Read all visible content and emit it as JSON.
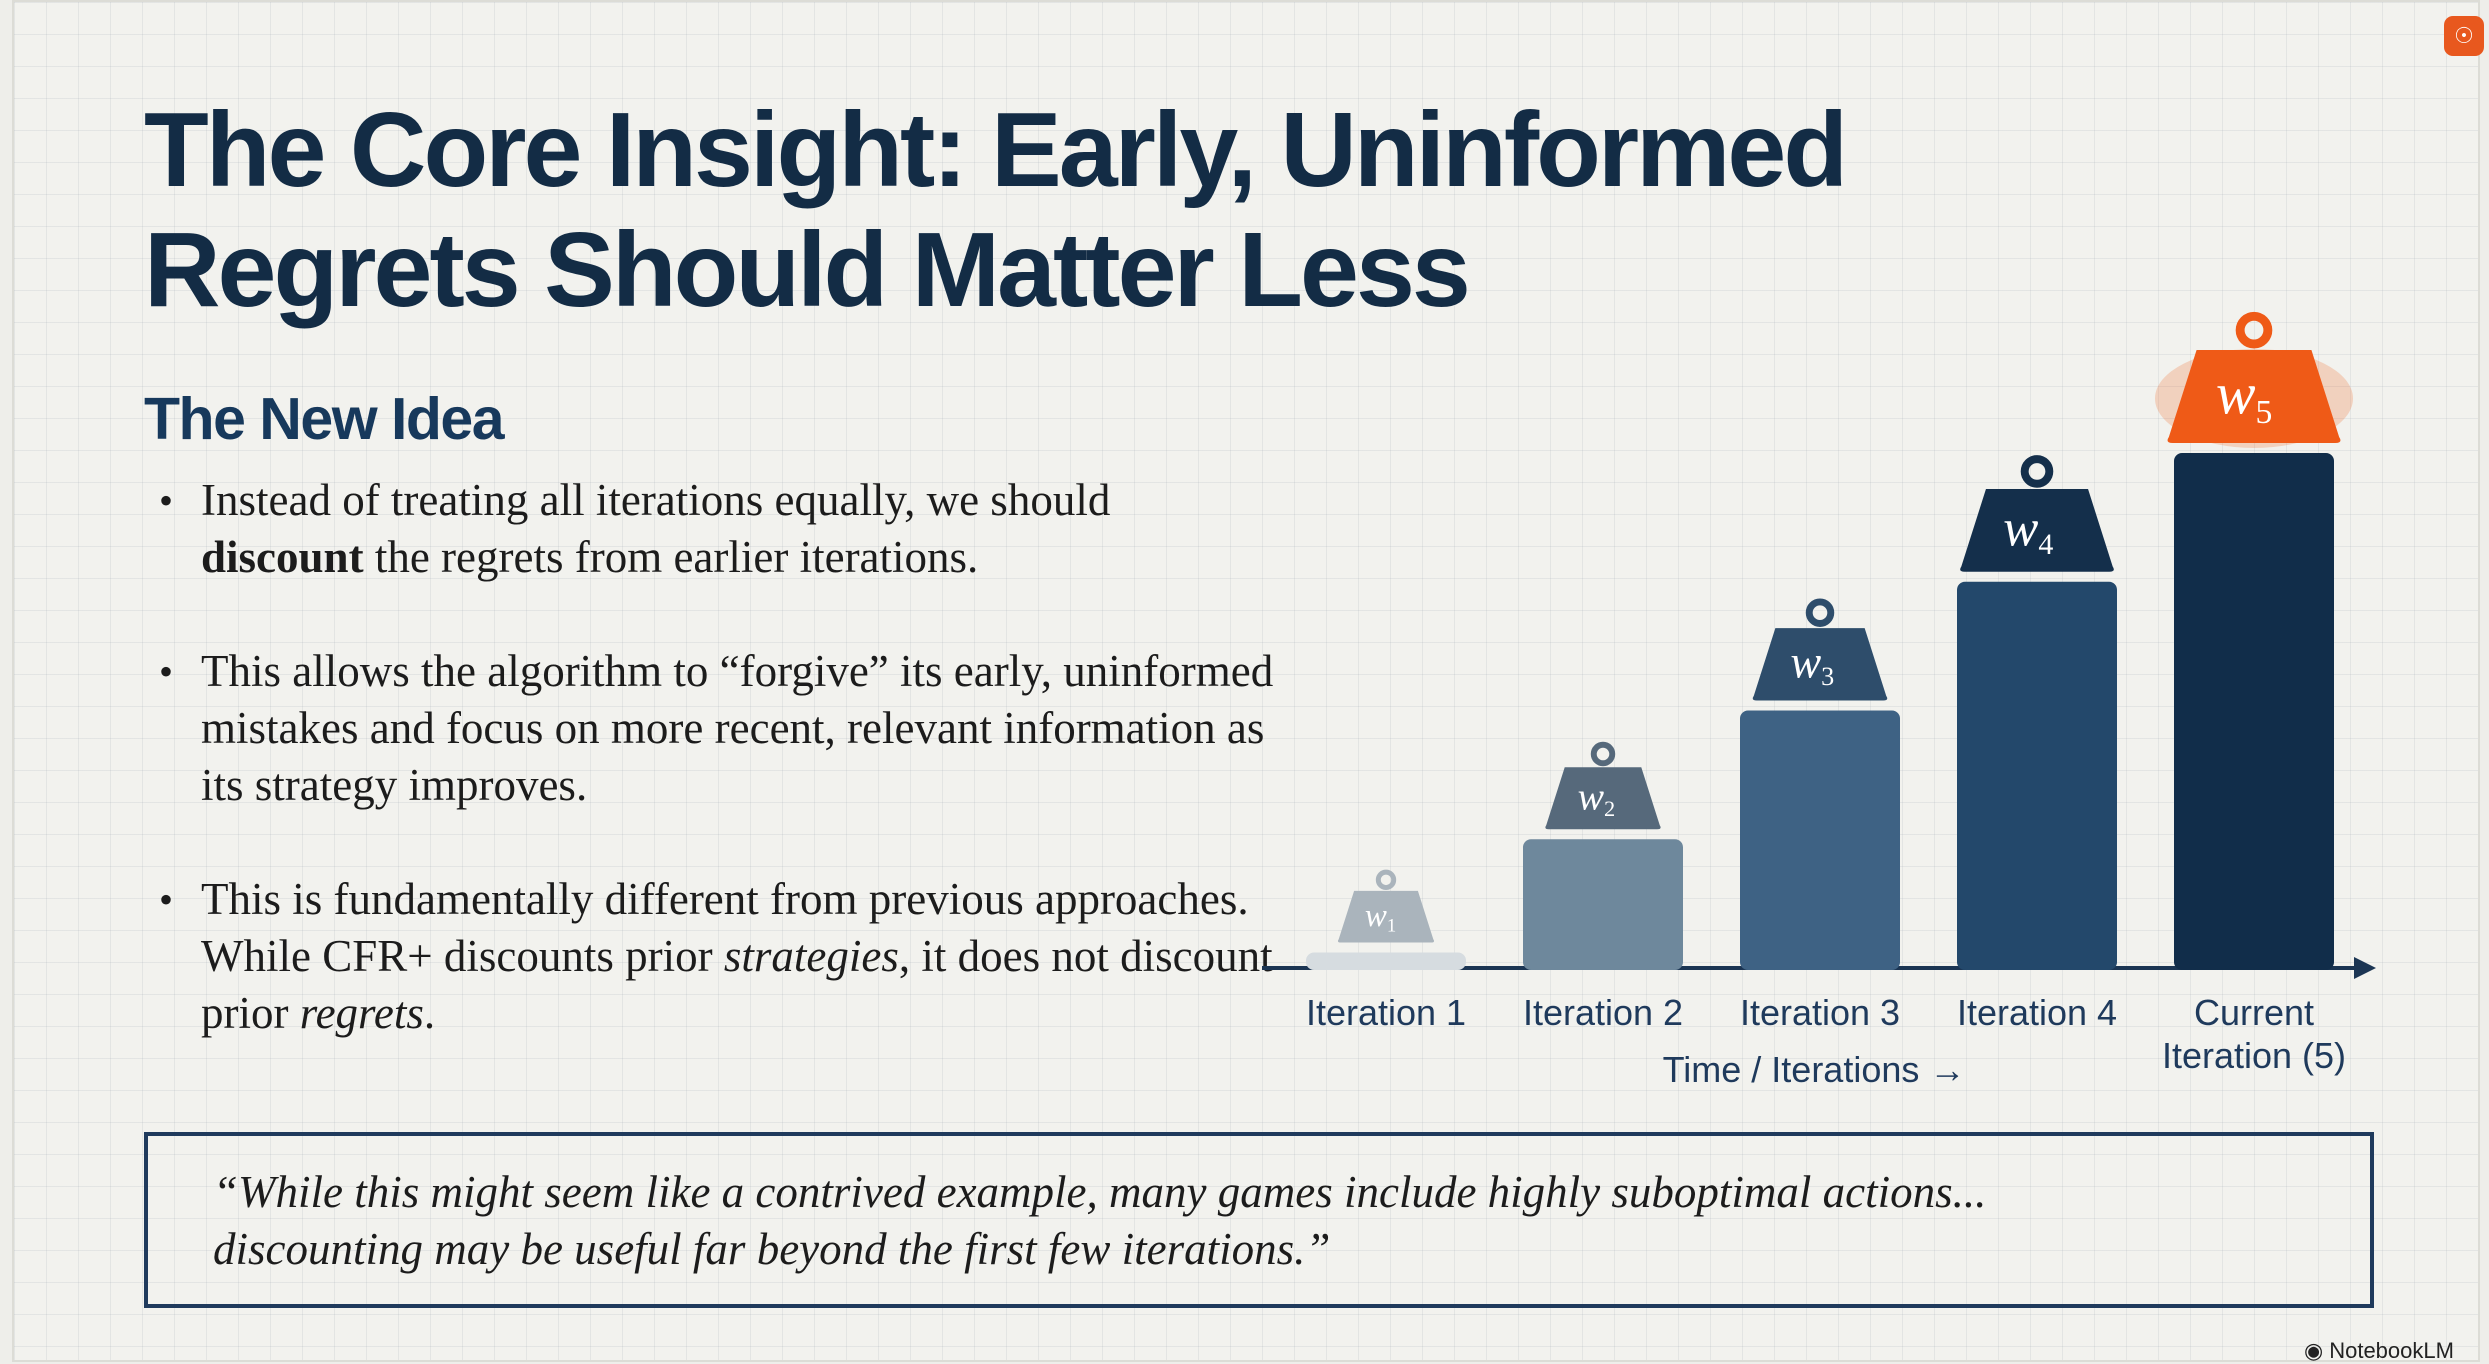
{
  "slide": {
    "title_line1": "The Core Insight: Early, Uninformed",
    "title_line2": "Regrets Should Matter Less",
    "subheading": "The New Idea",
    "bullets": [
      {
        "runs": [
          {
            "text": "Instead of treating all iterations equally, we should ",
            "style": "normal"
          },
          {
            "text": "discount",
            "style": "bold"
          },
          {
            "text": " the regrets from earlier iterations.",
            "style": "normal"
          }
        ]
      },
      {
        "runs": [
          {
            "text": "This allows the algorithm to “forgive” its early, uninformed mistakes and focus on more recent, relevant information as its strategy improves.",
            "style": "normal"
          }
        ]
      },
      {
        "runs": [
          {
            "text": "This is fundamentally different from previous approaches. While CFR+ discounts prior ",
            "style": "normal"
          },
          {
            "text": "strategies",
            "style": "italic"
          },
          {
            "text": ", it does not discount prior ",
            "style": "normal"
          },
          {
            "text": "regrets",
            "style": "italic"
          },
          {
            "text": ".",
            "style": "normal"
          }
        ]
      }
    ],
    "quote_line1": "“While this might seem like a contrived example, many games include highly suboptimal actions...",
    "quote_line2": "discounting may be useful far beyond the first few iterations.”",
    "brand": "NotebookLM",
    "badge_icon": "lightbulb-icon"
  },
  "chart_data": {
    "type": "bar",
    "categories": [
      "Iteration 1",
      "Iteration 2",
      "Iteration 3",
      "Iteration 4",
      "Current Iteration (5)"
    ],
    "values": [
      0.06,
      0.5,
      1.0,
      1.5,
      2.0
    ],
    "weight_labels": [
      {
        "base": "w",
        "sub": "1"
      },
      {
        "base": "w",
        "sub": "2"
      },
      {
        "base": "w",
        "sub": "3"
      },
      {
        "base": "w",
        "sub": "4"
      },
      {
        "base": "w",
        "sub": "5"
      }
    ],
    "xlabel": "Time / Iterations →",
    "ylabel": "",
    "colors": [
      "#d6dce0",
      "#6e889c",
      "#3e6284",
      "#23486b",
      "#112d4a"
    ],
    "weight_colors": [
      "#aab4bc",
      "#56697b",
      "#2e4d6b",
      "#142f4b",
      "#ef5a17"
    ],
    "highlight_color": "#ef5a17"
  }
}
